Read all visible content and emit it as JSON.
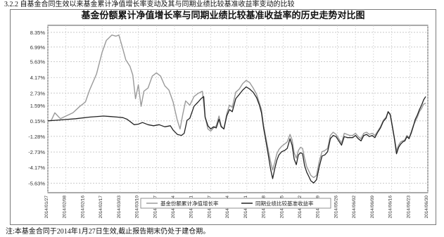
{
  "heading": "3.2.2 自基金合同生效以来基金累计净值增长率变动及其与同期业绩比较基准收益率变动的比较",
  "footnote": "注:本基金合同于2014年1月27日生效,截止报告期末仍处于建仓期。",
  "chart_data": {
    "type": "line",
    "title": "基金份额累计净值增长率与同期业绩比较基准收益率的历史走势对比图",
    "xlabel": "",
    "ylabel": "",
    "ylim": [
      -6.5,
      9.0
    ],
    "yticks": [
      -5.63,
      -4.17,
      -2.73,
      -1.28,
      0.15,
      1.59,
      2.73,
      4.17,
      5.63,
      6.99,
      8.35
    ],
    "ytick_labels": [
      "-5.63%",
      "-4.17%",
      "-2.73%",
      "-1.28%",
      "0.15%",
      "1.59%",
      "2.73%",
      "4.17%",
      "5.63%",
      "6.99%",
      "8.35%"
    ],
    "xticks": [
      "2014/01/27",
      "2014/02/08",
      "2014/02/16",
      "2014/02/17",
      "2014/03/03",
      "2014/03/10",
      "2014/03/17",
      "2014/03/24",
      "2014/03/31",
      "2014/04/07",
      "2014/04/14",
      "2014/04/21",
      "2014/04/28",
      "2014/05/05",
      "2014/05/12",
      "2014/05/19",
      "2014/05/26",
      "2014/06/02",
      "2014/06/09",
      "2014/06/16",
      "2014/06/23",
      "2014/06/30"
    ],
    "grid": true,
    "legend": "bottom-center",
    "series": [
      {
        "name": "基金份额累计净值增长率",
        "color": "#9a9a9a",
        "points": [
          [
            0,
            0.15
          ],
          [
            0.25,
            0.2
          ],
          [
            0.5,
            0.9
          ],
          [
            0.9,
            0.35
          ],
          [
            1.3,
            0.6
          ],
          [
            1.8,
            0.9
          ],
          [
            2.3,
            1.5
          ],
          [
            2.7,
            1.9
          ],
          [
            3.0,
            3.0
          ],
          [
            3.5,
            4.5
          ],
          [
            3.9,
            6.5
          ],
          [
            4.2,
            7.6
          ],
          [
            4.6,
            8.1
          ],
          [
            4.9,
            8.0
          ],
          [
            5.1,
            8.1
          ],
          [
            5.35,
            7.0
          ],
          [
            5.6,
            5.8
          ],
          [
            5.9,
            5.2
          ],
          [
            6.1,
            4.4
          ],
          [
            6.3,
            2.2
          ],
          [
            6.5,
            3.5
          ],
          [
            6.7,
            1.5
          ],
          [
            6.9,
            2.9
          ],
          [
            7.2,
            3.2
          ],
          [
            7.5,
            4.3
          ],
          [
            7.8,
            4.6
          ],
          [
            8.1,
            4.3
          ],
          [
            8.4,
            3.4
          ],
          [
            8.7,
            3.0
          ],
          [
            9.0,
            1.9
          ],
          [
            9.3,
            0.2
          ],
          [
            9.5,
            -0.6
          ],
          [
            9.7,
            0.8
          ],
          [
            9.9,
            2.0
          ],
          [
            10.2,
            1.6
          ],
          [
            10.5,
            2.4
          ],
          [
            10.8,
            2.7
          ],
          [
            11.1,
            2.9
          ],
          [
            11.3,
            0.5
          ],
          [
            11.5,
            -0.6
          ],
          [
            11.7,
            -0.8
          ],
          [
            11.9,
            -0.5
          ],
          [
            12.1,
            -0.3
          ],
          [
            12.3,
            0.6
          ],
          [
            12.45,
            -0.3
          ],
          [
            12.65,
            -0.6
          ],
          [
            12.85,
            0.8
          ],
          [
            13.05,
            1.6
          ],
          [
            13.25,
            1.4
          ],
          [
            13.5,
            2.8
          ],
          [
            13.75,
            3.1
          ],
          [
            14.0,
            3.6
          ],
          [
            14.25,
            3.9
          ],
          [
            14.5,
            3.7
          ],
          [
            14.75,
            3.2
          ],
          [
            15.0,
            2.6
          ],
          [
            15.2,
            1.8
          ],
          [
            15.35,
            1.2
          ],
          [
            15.5,
            -0.3
          ],
          [
            15.65,
            -1.3
          ],
          [
            15.8,
            -2.3
          ],
          [
            16.0,
            -3.6
          ],
          [
            16.15,
            -4.4
          ],
          [
            16.3,
            -3.7
          ],
          [
            16.45,
            -2.9
          ],
          [
            16.6,
            -2.5
          ],
          [
            16.8,
            -2.2
          ],
          [
            17.0,
            -2.0
          ],
          [
            17.2,
            -1.8
          ],
          [
            17.4,
            -1.1
          ],
          [
            17.55,
            -1.6
          ],
          [
            17.7,
            -2.8
          ],
          [
            17.85,
            -3.3
          ],
          [
            18.0,
            -2.6
          ],
          [
            18.15,
            -2.3
          ],
          [
            18.3,
            -2.4
          ],
          [
            18.45,
            -3.3
          ],
          [
            18.6,
            -4.1
          ],
          [
            18.75,
            -4.5
          ],
          [
            18.9,
            -4.9
          ],
          [
            19.1,
            -5.1
          ],
          [
            19.3,
            -4.9
          ],
          [
            19.5,
            -3.6
          ],
          [
            19.7,
            -2.7
          ],
          [
            19.9,
            -2.6
          ],
          [
            20.1,
            -2.4
          ],
          [
            20.3,
            -1.2
          ],
          [
            20.5,
            -0.9
          ],
          [
            20.7,
            -1.1
          ],
          [
            20.9,
            -1.5
          ],
          [
            21.1,
            -1.9
          ],
          [
            21.3,
            -1.0
          ],
          [
            21.5,
            -1.1
          ],
          [
            21.7,
            -1.2
          ],
          [
            21.9,
            -1.2
          ],
          [
            22.1,
            -1.0
          ],
          [
            22.3,
            -1.3
          ],
          [
            22.5,
            -1.5
          ],
          [
            22.7,
            -1.0
          ],
          [
            22.9,
            -0.9
          ],
          [
            23.1,
            -1.1
          ],
          [
            23.3,
            -1.0
          ],
          [
            23.5,
            -1.2
          ],
          [
            23.7,
            -0.8
          ],
          [
            23.9,
            -0.4
          ],
          [
            24.1,
            0.2
          ],
          [
            24.3,
            0.5
          ],
          [
            24.45,
            1.0
          ],
          [
            24.6,
            0.8
          ],
          [
            24.75,
            -0.3
          ],
          [
            24.9,
            -1.4
          ],
          [
            25.05,
            -2.6
          ],
          [
            25.2,
            -2.1
          ],
          [
            25.35,
            -1.8
          ],
          [
            25.5,
            -1.7
          ],
          [
            25.65,
            -1.6
          ],
          [
            25.8,
            -1.2
          ],
          [
            25.95,
            -1.4
          ],
          [
            26.1,
            -0.9
          ],
          [
            26.25,
            -0.3
          ],
          [
            26.4,
            0.1
          ],
          [
            26.55,
            0.5
          ],
          [
            26.7,
            1.0
          ],
          [
            26.85,
            1.3
          ],
          [
            27.0,
            1.7
          ],
          [
            27.15,
            1.8
          ]
        ]
      },
      {
        "name": "同期业绩比较基准收益率",
        "color": "#222222",
        "points": [
          [
            0,
            0.15
          ],
          [
            1.0,
            0.25
          ],
          [
            2.0,
            0.35
          ],
          [
            3.0,
            0.5
          ],
          [
            4.0,
            0.6
          ],
          [
            4.5,
            0.55
          ],
          [
            5.0,
            0.5
          ],
          [
            5.4,
            0.45
          ],
          [
            5.7,
            0.3
          ],
          [
            6.0,
            0.0
          ],
          [
            6.2,
            -0.2
          ],
          [
            6.5,
            -0.15
          ],
          [
            6.8,
            0.0
          ],
          [
            7.2,
            -0.2
          ],
          [
            7.6,
            -0.3
          ],
          [
            8.0,
            -0.2
          ],
          [
            8.4,
            -0.4
          ],
          [
            8.8,
            -0.3
          ],
          [
            9.0,
            -0.7
          ],
          [
            9.3,
            -1.1
          ],
          [
            9.6,
            -1.2
          ],
          [
            9.8,
            -1.0
          ],
          [
            10.0,
            0.2
          ],
          [
            10.2,
            0.4
          ],
          [
            10.5,
            1.5
          ],
          [
            10.8,
            1.9
          ],
          [
            11.0,
            2.2
          ],
          [
            11.2,
            2.4
          ],
          [
            11.3,
            0.5
          ],
          [
            11.5,
            -0.3
          ],
          [
            11.7,
            -0.6
          ],
          [
            11.9,
            -0.4
          ],
          [
            12.1,
            -0.5
          ],
          [
            12.3,
            0.3
          ],
          [
            12.45,
            -0.4
          ],
          [
            12.65,
            -0.6
          ],
          [
            12.85,
            0.6
          ],
          [
            13.05,
            1.2
          ],
          [
            13.25,
            1.0
          ],
          [
            13.5,
            2.2
          ],
          [
            13.75,
            2.6
          ],
          [
            14.0,
            3.0
          ],
          [
            14.25,
            3.3
          ],
          [
            14.5,
            3.1
          ],
          [
            14.75,
            2.8
          ],
          [
            15.0,
            2.3
          ],
          [
            15.2,
            1.6
          ],
          [
            15.35,
            0.9
          ],
          [
            15.5,
            -0.5
          ],
          [
            15.65,
            -1.6
          ],
          [
            15.8,
            -2.7
          ],
          [
            16.0,
            -4.3
          ],
          [
            16.15,
            -5.2
          ],
          [
            16.3,
            -4.3
          ],
          [
            16.45,
            -3.5
          ],
          [
            16.6,
            -3.0
          ],
          [
            16.8,
            -2.7
          ],
          [
            17.0,
            -2.6
          ],
          [
            17.2,
            -2.4
          ],
          [
            17.4,
            -1.5
          ],
          [
            17.55,
            -2.1
          ],
          [
            17.7,
            -3.4
          ],
          [
            17.85,
            -3.9
          ],
          [
            18.0,
            -3.0
          ],
          [
            18.15,
            -2.8
          ],
          [
            18.3,
            -2.9
          ],
          [
            18.45,
            -4.0
          ],
          [
            18.6,
            -4.6
          ],
          [
            18.75,
            -5.0
          ],
          [
            18.9,
            -5.4
          ],
          [
            19.1,
            -5.6
          ],
          [
            19.3,
            -5.3
          ],
          [
            19.5,
            -4.1
          ],
          [
            19.7,
            -3.1
          ],
          [
            19.9,
            -3.0
          ],
          [
            20.1,
            -2.7
          ],
          [
            20.3,
            -1.5
          ],
          [
            20.5,
            -1.2
          ],
          [
            20.7,
            -1.3
          ],
          [
            20.9,
            -1.7
          ],
          [
            21.1,
            -2.1
          ],
          [
            21.3,
            -1.3
          ],
          [
            21.5,
            -1.4
          ],
          [
            21.7,
            -1.4
          ],
          [
            21.9,
            -1.4
          ],
          [
            22.1,
            -1.2
          ],
          [
            22.3,
            -1.5
          ],
          [
            22.5,
            -1.7
          ],
          [
            22.7,
            -1.2
          ],
          [
            22.9,
            -1.1
          ],
          [
            23.1,
            -1.3
          ],
          [
            23.3,
            -1.2
          ],
          [
            23.5,
            -1.4
          ],
          [
            23.7,
            -0.9
          ],
          [
            23.9,
            -0.5
          ],
          [
            24.1,
            0.1
          ],
          [
            24.3,
            0.4
          ],
          [
            24.45,
            1.0
          ],
          [
            24.6,
            0.7
          ],
          [
            24.75,
            -0.4
          ],
          [
            24.9,
            -1.5
          ],
          [
            25.05,
            -2.9
          ],
          [
            25.2,
            -2.3
          ],
          [
            25.35,
            -2.0
          ],
          [
            25.5,
            -1.8
          ],
          [
            25.65,
            -1.7
          ],
          [
            25.8,
            -1.3
          ],
          [
            25.95,
            -1.5
          ],
          [
            26.1,
            -1.0
          ],
          [
            26.25,
            -0.4
          ],
          [
            26.4,
            0.3
          ],
          [
            26.55,
            0.7
          ],
          [
            26.7,
            1.2
          ],
          [
            26.85,
            1.6
          ],
          [
            27.0,
            2.1
          ],
          [
            27.15,
            2.4
          ]
        ]
      }
    ]
  }
}
